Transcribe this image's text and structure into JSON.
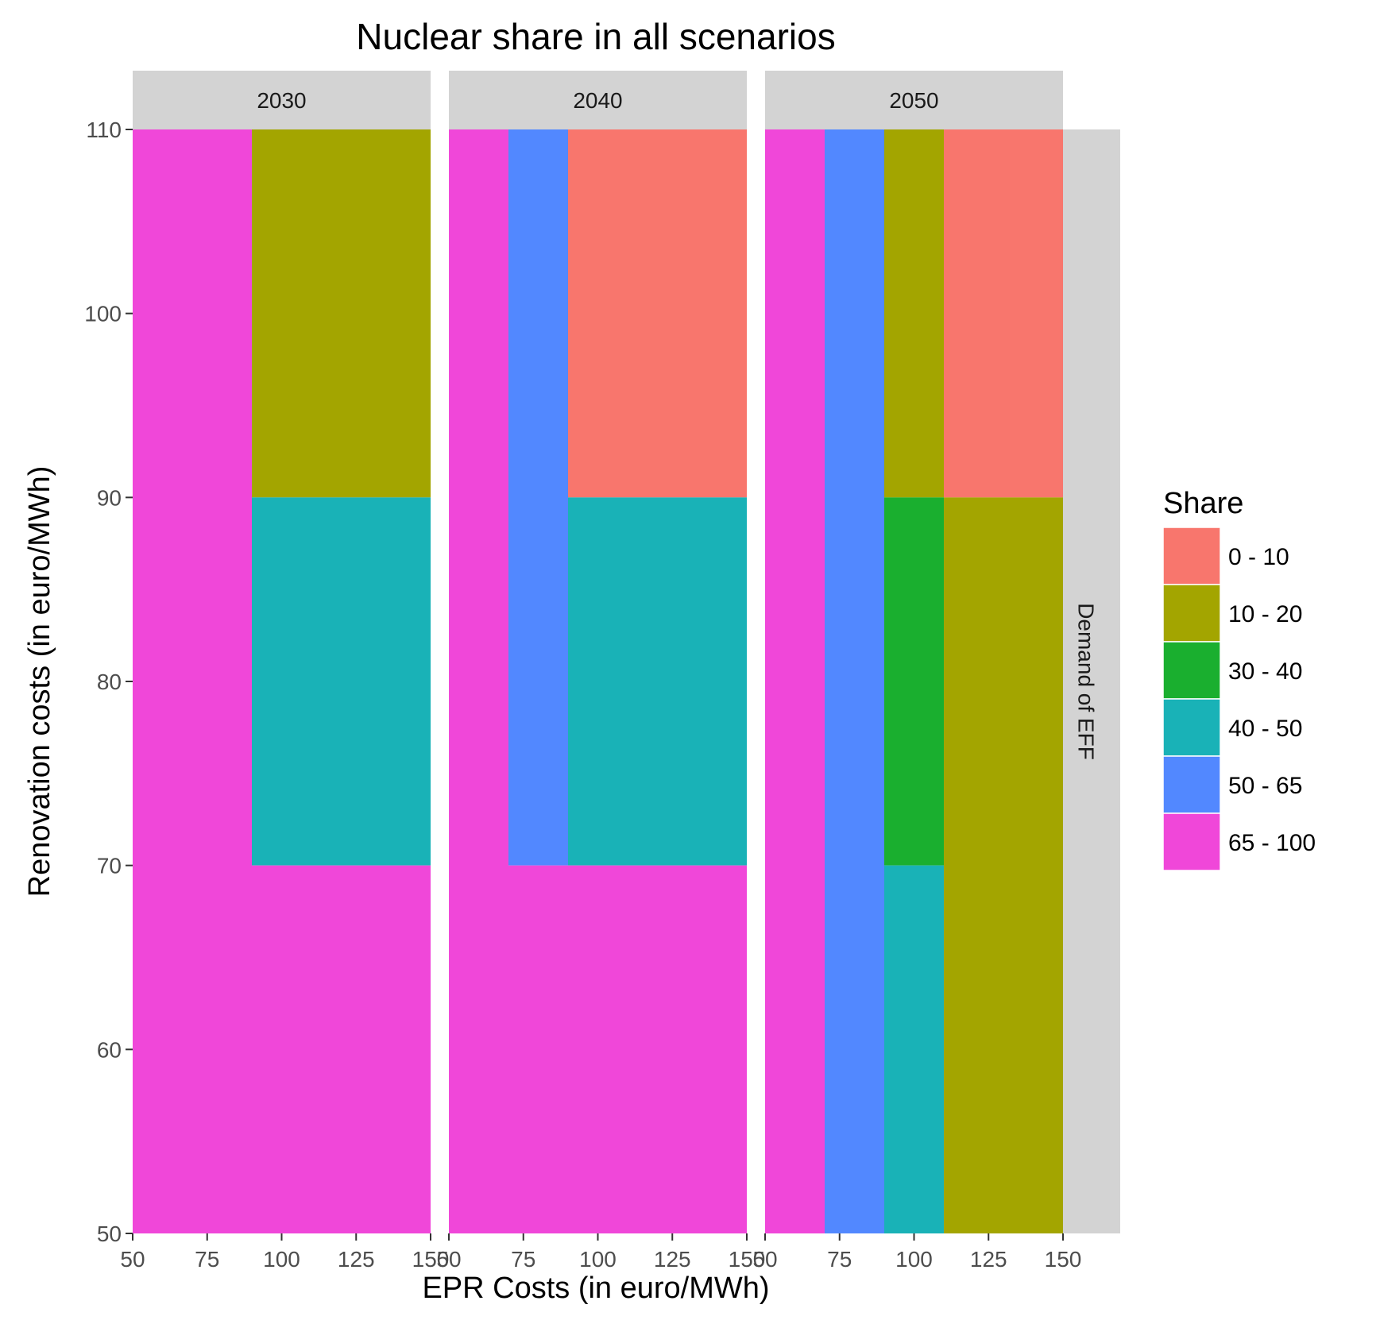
{
  "chart_data": {
    "type": "heatmap",
    "title": "Nuclear share in all scenarios",
    "xlabel": "EPR Costs (in euro/MWh)",
    "ylabel": "Renovation costs (in euro/MWh)",
    "xlim": [
      50,
      150
    ],
    "ylim": [
      50,
      110
    ],
    "x_ticks": [
      50,
      75,
      100,
      125,
      150
    ],
    "y_ticks": [
      50,
      60,
      70,
      80,
      90,
      100,
      110
    ],
    "row_strip_label": "Demand of EFF",
    "legend": {
      "title": "Share",
      "position": "right",
      "entries": [
        {
          "label": "0 - 10",
          "color": "#F8766D"
        },
        {
          "label": "10 - 20",
          "color": "#A3A500"
        },
        {
          "label": "30 - 40",
          "color": "#1AAF2F"
        },
        {
          "label": "40 - 50",
          "color": "#19B2B7"
        },
        {
          "label": "50 - 65",
          "color": "#5288FF"
        },
        {
          "label": "65 - 100",
          "color": "#F047D9"
        }
      ]
    },
    "panels": [
      {
        "label": "2030",
        "tiles": [
          {
            "x": [
              50,
              90
            ],
            "y": [
              50,
              110
            ],
            "share": "65 - 100"
          },
          {
            "x": [
              90,
              150
            ],
            "y": [
              90,
              110
            ],
            "share": "10 - 20"
          },
          {
            "x": [
              90,
              150
            ],
            "y": [
              70,
              90
            ],
            "share": "40 - 50"
          },
          {
            "x": [
              90,
              150
            ],
            "y": [
              50,
              70
            ],
            "share": "65 - 100"
          }
        ]
      },
      {
        "label": "2040",
        "tiles": [
          {
            "x": [
              50,
              70
            ],
            "y": [
              50,
              110
            ],
            "share": "65 - 100"
          },
          {
            "x": [
              70,
              90
            ],
            "y": [
              70,
              110
            ],
            "share": "50 - 65"
          },
          {
            "x": [
              90,
              150
            ],
            "y": [
              90,
              110
            ],
            "share": "0 - 10"
          },
          {
            "x": [
              90,
              150
            ],
            "y": [
              70,
              90
            ],
            "share": "40 - 50"
          },
          {
            "x": [
              70,
              150
            ],
            "y": [
              50,
              70
            ],
            "share": "65 - 100"
          }
        ]
      },
      {
        "label": "2050",
        "tiles": [
          {
            "x": [
              50,
              70
            ],
            "y": [
              50,
              110
            ],
            "share": "65 - 100"
          },
          {
            "x": [
              70,
              90
            ],
            "y": [
              50,
              110
            ],
            "share": "50 - 65"
          },
          {
            "x": [
              90,
              110
            ],
            "y": [
              90,
              110
            ],
            "share": "10 - 20"
          },
          {
            "x": [
              90,
              110
            ],
            "y": [
              70,
              90
            ],
            "share": "30 - 40"
          },
          {
            "x": [
              90,
              110
            ],
            "y": [
              50,
              70
            ],
            "share": "40 - 50"
          },
          {
            "x": [
              110,
              150
            ],
            "y": [
              90,
              110
            ],
            "share": "0 - 10"
          },
          {
            "x": [
              110,
              150
            ],
            "y": [
              50,
              90
            ],
            "share": "10 - 20"
          }
        ]
      }
    ],
    "grid": false
  }
}
